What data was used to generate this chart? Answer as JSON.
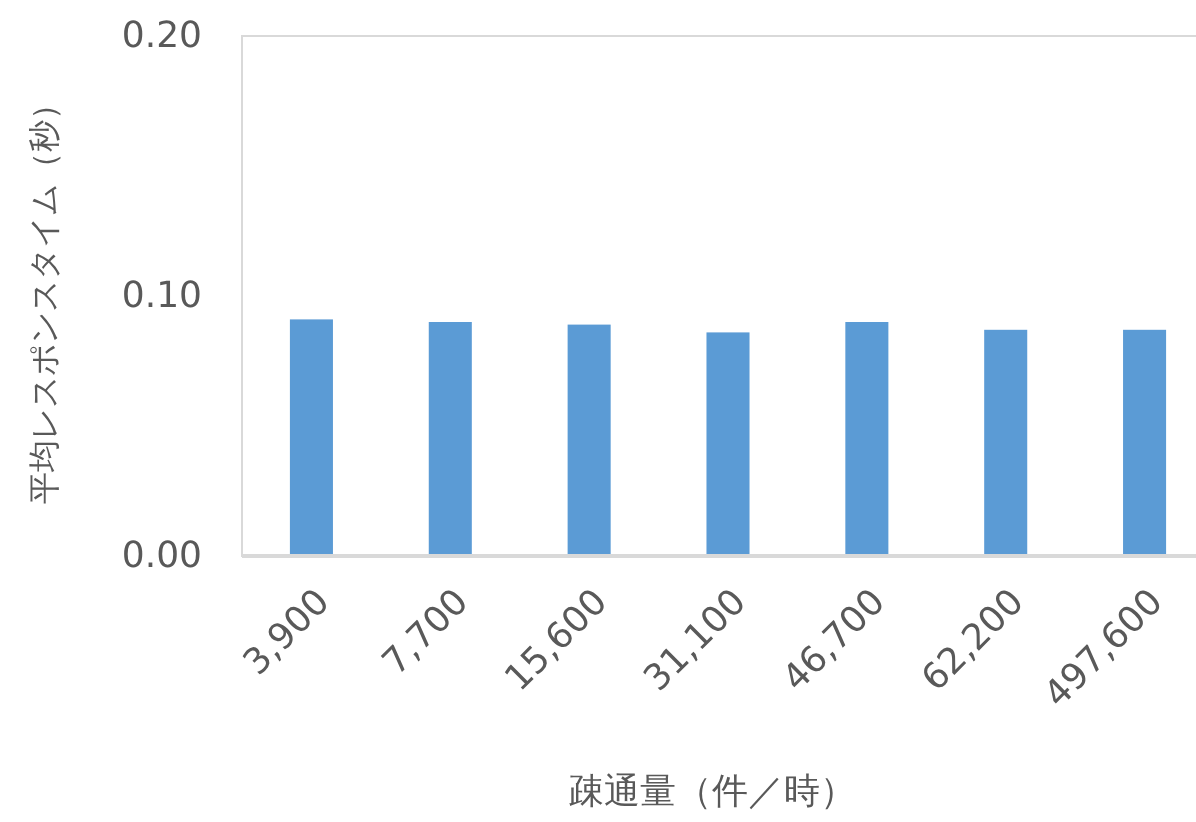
{
  "chart_data": {
    "type": "bar",
    "ylabel": "平均レスポンスタイム（秒）",
    "xlabel": "疎通量（件／時）",
    "categories": [
      "3,900",
      "7,700",
      "15,600",
      "31,100",
      "46,700",
      "62,200",
      "497,600"
    ],
    "values": [
      0.091,
      0.09,
      0.089,
      0.086,
      0.09,
      0.087,
      0.087
    ],
    "color": "#5b9bd5",
    "ylim": [
      0,
      0.2
    ],
    "yticks": [
      {
        "value": 0,
        "label": "0.00"
      },
      {
        "value": 0.1,
        "label": "0.10"
      },
      {
        "value": 0.2,
        "label": "0.20"
      }
    ]
  }
}
